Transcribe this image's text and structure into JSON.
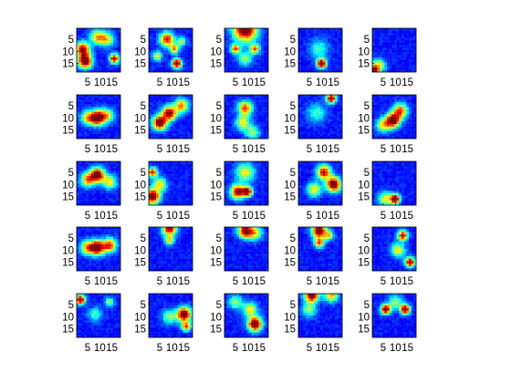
{
  "chart_data": {
    "type": "heatmap",
    "layout": {
      "rows": 5,
      "cols": 5
    },
    "colormap": "jet",
    "ytick_labels": [
      "5",
      "10",
      "15"
    ],
    "xtick_labels": [
      "5",
      "10",
      "15"
    ],
    "xlim": [
      0.5,
      18.5
    ],
    "ylim": [
      0.5,
      18.5
    ],
    "panels": [
      {
        "row": 1,
        "col": 1,
        "blobs": [
          [
            3,
            9,
            3,
            0.85
          ],
          [
            4,
            14,
            3,
            1.0
          ],
          [
            16,
            13,
            2,
            0.9
          ],
          [
            9,
            4,
            3,
            0.55
          ],
          [
            13,
            5,
            3,
            0.5
          ]
        ]
      },
      {
        "row": 1,
        "col": 2,
        "blobs": [
          [
            8,
            5,
            3,
            0.8
          ],
          [
            11,
            9,
            2,
            0.6
          ],
          [
            12,
            15,
            2,
            1.0
          ],
          [
            4,
            12,
            2,
            0.5
          ],
          [
            14,
            6,
            2,
            0.4
          ]
        ]
      },
      {
        "row": 1,
        "col": 3,
        "blobs": [
          [
            9,
            1,
            5,
            1.0
          ],
          [
            5,
            9,
            2,
            0.7
          ],
          [
            13,
            9,
            2,
            0.7
          ],
          [
            9,
            13,
            3,
            0.4
          ]
        ]
      },
      {
        "row": 1,
        "col": 4,
        "blobs": [
          [
            10,
            15,
            2,
            1.0
          ],
          [
            9,
            9,
            4,
            0.3
          ]
        ]
      },
      {
        "row": 1,
        "col": 5,
        "blobs": [
          [
            1,
            18,
            2,
            0.9
          ],
          [
            3,
            16,
            3,
            0.5
          ]
        ]
      },
      {
        "row": 2,
        "col": 1,
        "blobs": [
          [
            9,
            10,
            3,
            1.0
          ],
          [
            5,
            10,
            3,
            0.5
          ],
          [
            13,
            9,
            3,
            0.5
          ]
        ]
      },
      {
        "row": 2,
        "col": 2,
        "blobs": [
          [
            5,
            12,
            3,
            1.0
          ],
          [
            9,
            8,
            3,
            0.9
          ],
          [
            14,
            5,
            3,
            0.6
          ]
        ]
      },
      {
        "row": 2,
        "col": 3,
        "blobs": [
          [
            9,
            6,
            3,
            0.7
          ],
          [
            8,
            12,
            3,
            0.5
          ],
          [
            12,
            16,
            3,
            0.4
          ]
        ]
      },
      {
        "row": 2,
        "col": 4,
        "blobs": [
          [
            14,
            2,
            2,
            1.0
          ],
          [
            8,
            8,
            4,
            0.3
          ]
        ]
      },
      {
        "row": 2,
        "col": 5,
        "blobs": [
          [
            9,
            11,
            3,
            1.0
          ],
          [
            12,
            7,
            3,
            0.7
          ],
          [
            5,
            13,
            3,
            0.5
          ]
        ]
      },
      {
        "row": 3,
        "col": 1,
        "blobs": [
          [
            9,
            6,
            3,
            1.0
          ],
          [
            5,
            8,
            3,
            0.6
          ],
          [
            14,
            9,
            3,
            0.5
          ]
        ]
      },
      {
        "row": 3,
        "col": 2,
        "blobs": [
          [
            2,
            15,
            3,
            1.0
          ],
          [
            2,
            5,
            2,
            0.8
          ],
          [
            5,
            10,
            3,
            0.5
          ]
        ]
      },
      {
        "row": 3,
        "col": 3,
        "blobs": [
          [
            6,
            13,
            3,
            0.9
          ],
          [
            10,
            13,
            2,
            0.9
          ],
          [
            9,
            5,
            4,
            0.5
          ]
        ]
      },
      {
        "row": 3,
        "col": 4,
        "blobs": [
          [
            15,
            10,
            3,
            1.0
          ],
          [
            11,
            5,
            3,
            0.8
          ],
          [
            7,
            12,
            3,
            0.5
          ]
        ]
      },
      {
        "row": 3,
        "col": 5,
        "blobs": [
          [
            10,
            16,
            2,
            1.0
          ],
          [
            6,
            16,
            3,
            0.5
          ]
        ]
      },
      {
        "row": 4,
        "col": 1,
        "blobs": [
          [
            9,
            9,
            3,
            1.0
          ],
          [
            5,
            9,
            3,
            0.6
          ],
          [
            14,
            8,
            3,
            0.7
          ]
        ]
      },
      {
        "row": 4,
        "col": 2,
        "blobs": [
          [
            9,
            1,
            3,
            0.9
          ],
          [
            9,
            6,
            2,
            0.5
          ]
        ]
      },
      {
        "row": 4,
        "col": 3,
        "blobs": [
          [
            9,
            2,
            3,
            0.9
          ],
          [
            13,
            3,
            3,
            0.5
          ]
        ]
      },
      {
        "row": 4,
        "col": 4,
        "blobs": [
          [
            9,
            2,
            3,
            1.0
          ],
          [
            9,
            7,
            2,
            0.7
          ],
          [
            13,
            4,
            2,
            0.5
          ]
        ]
      },
      {
        "row": 4,
        "col": 5,
        "blobs": [
          [
            13,
            4,
            2,
            0.9
          ],
          [
            16,
            15,
            2,
            1.0
          ],
          [
            11,
            10,
            3,
            0.5
          ]
        ]
      },
      {
        "row": 5,
        "col": 1,
        "blobs": [
          [
            2,
            3,
            2,
            1.0
          ],
          [
            8,
            9,
            3,
            0.3
          ],
          [
            14,
            4,
            2,
            0.4
          ]
        ]
      },
      {
        "row": 5,
        "col": 2,
        "blobs": [
          [
            15,
            9,
            3,
            1.0
          ],
          [
            9,
            10,
            3,
            0.4
          ],
          [
            16,
            14,
            2,
            0.7
          ]
        ]
      },
      {
        "row": 5,
        "col": 3,
        "blobs": [
          [
            13,
            13,
            3,
            1.0
          ],
          [
            11,
            7,
            3,
            0.5
          ],
          [
            5,
            4,
            3,
            0.4
          ]
        ]
      },
      {
        "row": 5,
        "col": 4,
        "blobs": [
          [
            6,
            1,
            3,
            1.0
          ],
          [
            14,
            1,
            3,
            0.6
          ],
          [
            5,
            7,
            3,
            0.4
          ]
        ]
      },
      {
        "row": 5,
        "col": 5,
        "blobs": [
          [
            6,
            7,
            2,
            1.0
          ],
          [
            14,
            7,
            2,
            1.0
          ],
          [
            10,
            4,
            3,
            0.4
          ]
        ]
      }
    ]
  }
}
